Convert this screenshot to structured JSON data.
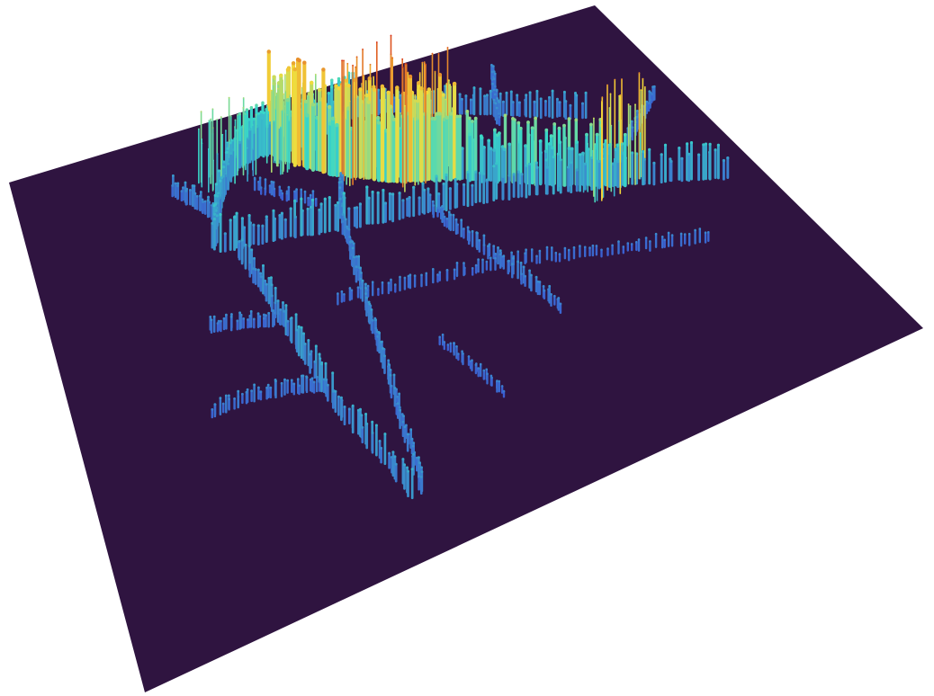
{
  "chart_data": {
    "type": "surface-3d",
    "grid": false,
    "axes_visible": false,
    "colorscale": "turbo",
    "colors": {
      "floor": "#2f1440",
      "background": "#ffffff",
      "low": "#3b4fd1",
      "mid": "#38d8c8",
      "high": "#f4dc3a",
      "peak": "#d8331c"
    },
    "extent": {
      "x": [
        0,
        100
      ],
      "y": [
        0,
        100
      ]
    },
    "z_range": [
      0,
      1
    ],
    "features": [
      {
        "kind": "branch",
        "points": [
          [
            48,
            22
          ],
          [
            46,
            28
          ],
          [
            45,
            34
          ],
          [
            44,
            42
          ],
          [
            43,
            50
          ],
          [
            42,
            58
          ],
          [
            41,
            68
          ],
          [
            40,
            78
          ],
          [
            39,
            88
          ]
        ],
        "z": 0.12
      },
      {
        "kind": "branch",
        "points": [
          [
            28,
            26
          ],
          [
            35,
            27
          ],
          [
            42,
            29
          ],
          [
            50,
            31
          ],
          [
            58,
            33
          ],
          [
            66,
            35
          ],
          [
            74,
            38
          ],
          [
            82,
            42
          ],
          [
            90,
            46
          ],
          [
            96,
            50
          ]
        ],
        "z": 0.22
      },
      {
        "kind": "branch",
        "points": [
          [
            30,
            28
          ],
          [
            31,
            36
          ],
          [
            32,
            46
          ],
          [
            33,
            56
          ],
          [
            34,
            66
          ],
          [
            36,
            76
          ],
          [
            38,
            88
          ]
        ],
        "z": 0.18
      },
      {
        "kind": "branch",
        "points": [
          [
            27,
            25
          ],
          [
            29,
            20
          ],
          [
            31,
            16
          ],
          [
            33,
            13
          ],
          [
            35,
            11
          ]
        ],
        "z": 0.22
      },
      {
        "kind": "branch",
        "points": [
          [
            35,
            11
          ],
          [
            38,
            10
          ],
          [
            41,
            10
          ],
          [
            44,
            11
          ]
        ],
        "z": 0.32
      },
      {
        "kind": "branch",
        "points": [
          [
            41,
            10
          ],
          [
            44,
            14
          ],
          [
            48,
            18
          ],
          [
            52,
            21
          ],
          [
            56,
            24
          ],
          [
            60,
            26
          ],
          [
            64,
            28
          ]
        ],
        "z": 0.62
      },
      {
        "kind": "branch",
        "points": [
          [
            64,
            28
          ],
          [
            68,
            31
          ],
          [
            72,
            34
          ],
          [
            76,
            37
          ],
          [
            80,
            40
          ],
          [
            84,
            43
          ]
        ],
        "z": 0.4
      },
      {
        "kind": "branch",
        "points": [
          [
            44,
            11
          ],
          [
            48,
            10
          ],
          [
            52,
            9
          ],
          [
            56,
            8
          ]
        ],
        "z": 0.3
      },
      {
        "kind": "branch",
        "points": [
          [
            56,
            8
          ],
          [
            62,
            10
          ],
          [
            68,
            13
          ],
          [
            74,
            17
          ],
          [
            80,
            21
          ],
          [
            86,
            25
          ]
        ],
        "z": 0.16
      },
      {
        "kind": "branch",
        "points": [
          [
            40,
            44
          ],
          [
            48,
            46
          ],
          [
            56,
            48
          ],
          [
            64,
            50
          ],
          [
            72,
            54
          ],
          [
            80,
            58
          ],
          [
            88,
            62
          ]
        ],
        "z": 0.08
      },
      {
        "kind": "branch",
        "points": [
          [
            58,
            33
          ],
          [
            60,
            40
          ],
          [
            62,
            48
          ],
          [
            64,
            56
          ],
          [
            66,
            64
          ]
        ],
        "z": 0.1
      },
      {
        "kind": "branch",
        "points": [
          [
            22,
            40
          ],
          [
            27,
            42
          ],
          [
            32,
            44
          ]
        ],
        "z": 0.1
      },
      {
        "kind": "branch",
        "points": [
          [
            18,
            56
          ],
          [
            24,
            56
          ],
          [
            30,
            58
          ],
          [
            34,
            60
          ]
        ],
        "z": 0.1
      },
      {
        "kind": "branch",
        "points": [
          [
            74,
            20
          ],
          [
            76,
            14
          ],
          [
            78,
            9
          ]
        ],
        "z": 0.1
      },
      {
        "kind": "branch",
        "points": [
          [
            88,
            34
          ],
          [
            92,
            30
          ],
          [
            96,
            26
          ]
        ],
        "z": 0.1
      },
      {
        "kind": "branch",
        "points": [
          [
            50,
            60
          ],
          [
            52,
            68
          ],
          [
            54,
            76
          ]
        ],
        "z": 0.07
      },
      {
        "kind": "branch",
        "points": [
          [
            24,
            12
          ],
          [
            27,
            16
          ],
          [
            29,
            20
          ]
        ],
        "z": 0.12
      },
      {
        "kind": "branch",
        "points": [
          [
            36,
            16
          ],
          [
            40,
            20
          ],
          [
            44,
            24
          ]
        ],
        "z": 0.08
      },
      {
        "kind": "peak-cluster",
        "center": [
          44,
          13
        ],
        "z": 0.62
      },
      {
        "kind": "peak-cluster",
        "center": [
          53,
          20
        ],
        "z": 0.95
      },
      {
        "kind": "peak-cluster",
        "center": [
          60,
          25
        ],
        "z": 0.9
      },
      {
        "kind": "peak-cluster",
        "center": [
          82,
          42
        ],
        "z": 0.8
      },
      {
        "kind": "peak-cluster",
        "center": [
          33,
          12
        ],
        "z": 0.55
      }
    ]
  }
}
